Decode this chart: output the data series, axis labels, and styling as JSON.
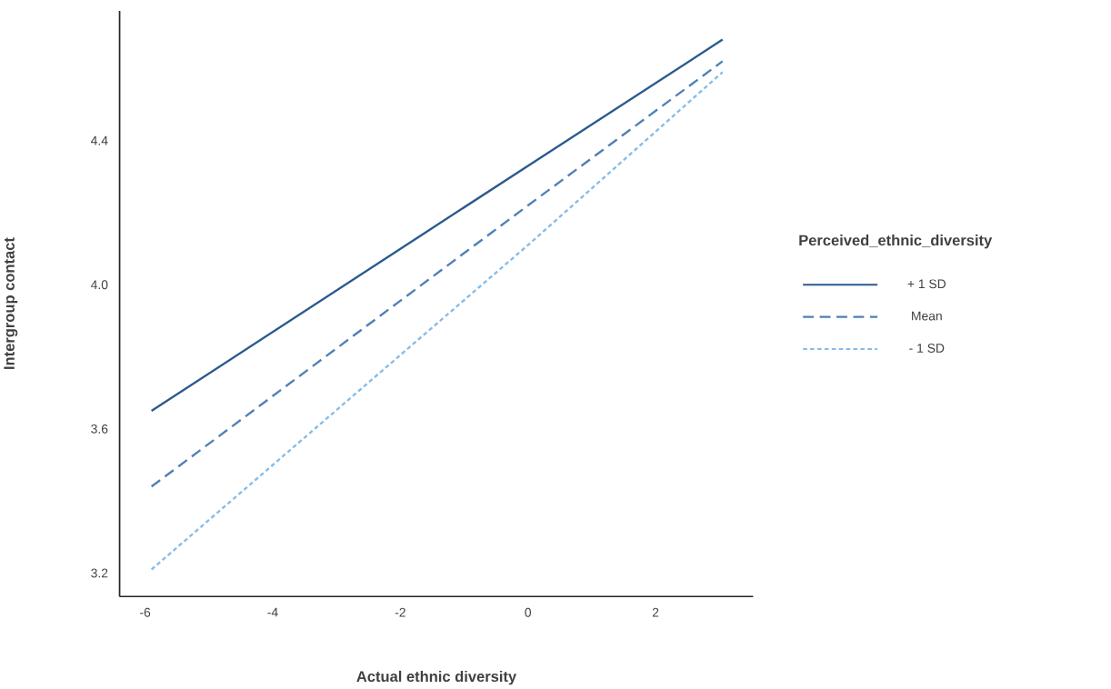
{
  "chart_data": {
    "type": "line",
    "xlabel": "Actual ethnic diversity",
    "ylabel": "Intergroup contact",
    "legend_title": "Perceived_ethnic_diversity",
    "legend": "right",
    "grid": false,
    "x": [
      -5.9,
      0,
      3.05
    ],
    "series": [
      {
        "name": "+ 1 SD",
        "color": "#2b5a8c",
        "line_style": "solid",
        "values": [
          3.65,
          4.33,
          4.68
        ]
      },
      {
        "name": "Mean",
        "color": "#4f80b5",
        "line_style": "dashed",
        "values": [
          3.44,
          4.22,
          4.62
        ]
      },
      {
        "name": "- 1 SD",
        "color": "#86bce8",
        "line_style": "dotted",
        "values": [
          3.21,
          4.11,
          4.59
        ]
      }
    ],
    "xlim": [
      -6.4,
      3.53
    ],
    "ylim": [
      3.135,
      4.76
    ],
    "xticks": [
      -6,
      -4,
      -2,
      0,
      2
    ],
    "yticks": [
      3.2,
      3.6,
      {
        "value": 4,
        "label": "4.0"
      },
      4.4
    ]
  }
}
